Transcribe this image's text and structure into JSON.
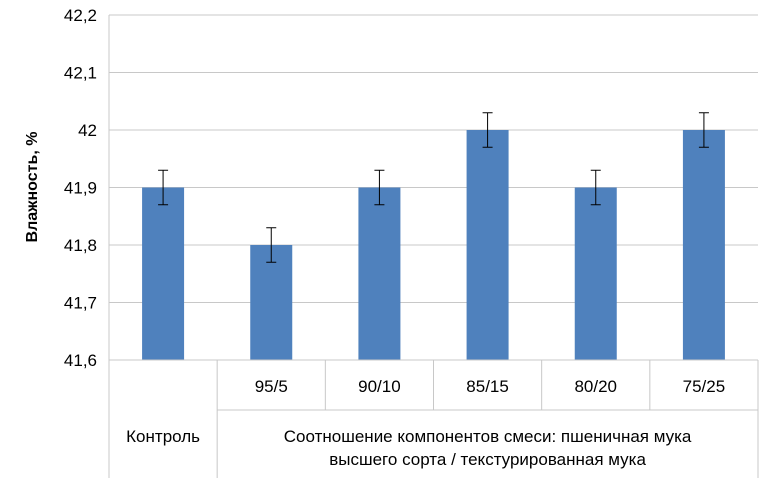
{
  "chart_data": {
    "type": "bar",
    "title": "",
    "xlabel": "",
    "ylabel": "Влажность, %",
    "ylim": [
      41.6,
      42.2
    ],
    "yticks": [
      "41,6",
      "41,7",
      "41,8",
      "41,9",
      "42",
      "42,1",
      "42,2"
    ],
    "ytick_values": [
      41.6,
      41.7,
      41.8,
      41.9,
      42.0,
      42.1,
      42.2
    ],
    "categories": [
      "",
      "95/5",
      "90/10",
      "85/15",
      "80/20",
      "75/25"
    ],
    "values": [
      41.9,
      41.8,
      41.9,
      42.0,
      41.9,
      42.0
    ],
    "errors": [
      0.03,
      0.03,
      0.03,
      0.03,
      0.03,
      0.03
    ],
    "groups": [
      {
        "label": "Контроль",
        "span": 1
      },
      {
        "label_lines": [
          "Соотношение компонентов смеси: пшеничная мука",
          "высшего сорта / текстурированная мука"
        ],
        "span": 5
      }
    ],
    "grid": true,
    "bar_color": "#4f81bd"
  }
}
